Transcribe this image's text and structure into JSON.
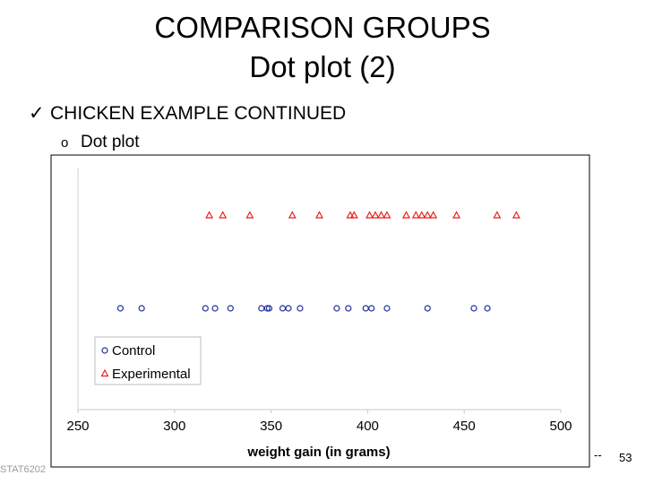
{
  "slide": {
    "title_line1": "COMPARISON GROUPS",
    "title_line2": "Dot plot (2)",
    "bullet1_mark": "✓",
    "bullet1": "CHICKEN EXAMPLE CONTINUED",
    "bullet2_mark": "o",
    "bullet2": "Dot plot",
    "footer_left": "STAT6202",
    "footer_mark": "--",
    "page_number": "53"
  },
  "chart_data": {
    "type": "scatter",
    "title": "",
    "xlabel": "weight gain (in grams)",
    "ylabel": "",
    "xlim": [
      250,
      500
    ],
    "x_ticks": [
      "250",
      "300",
      "350",
      "400",
      "450",
      "500"
    ],
    "grid": false,
    "legend_position": "bottom-left",
    "series": [
      {
        "name": "Control",
        "marker": "circle",
        "color": "#1f2f9a",
        "values": [
          272,
          283,
          316,
          321,
          329,
          345,
          348,
          349,
          356,
          359,
          365,
          384,
          390,
          399,
          402,
          410,
          431,
          455,
          462
        ]
      },
      {
        "name": "Experimental",
        "marker": "triangle",
        "color": "#e8211f",
        "values": [
          318,
          325,
          339,
          361,
          375,
          391,
          393,
          401,
          404,
          407,
          410,
          420,
          425,
          428,
          431,
          434,
          446,
          467,
          477
        ]
      }
    ]
  }
}
